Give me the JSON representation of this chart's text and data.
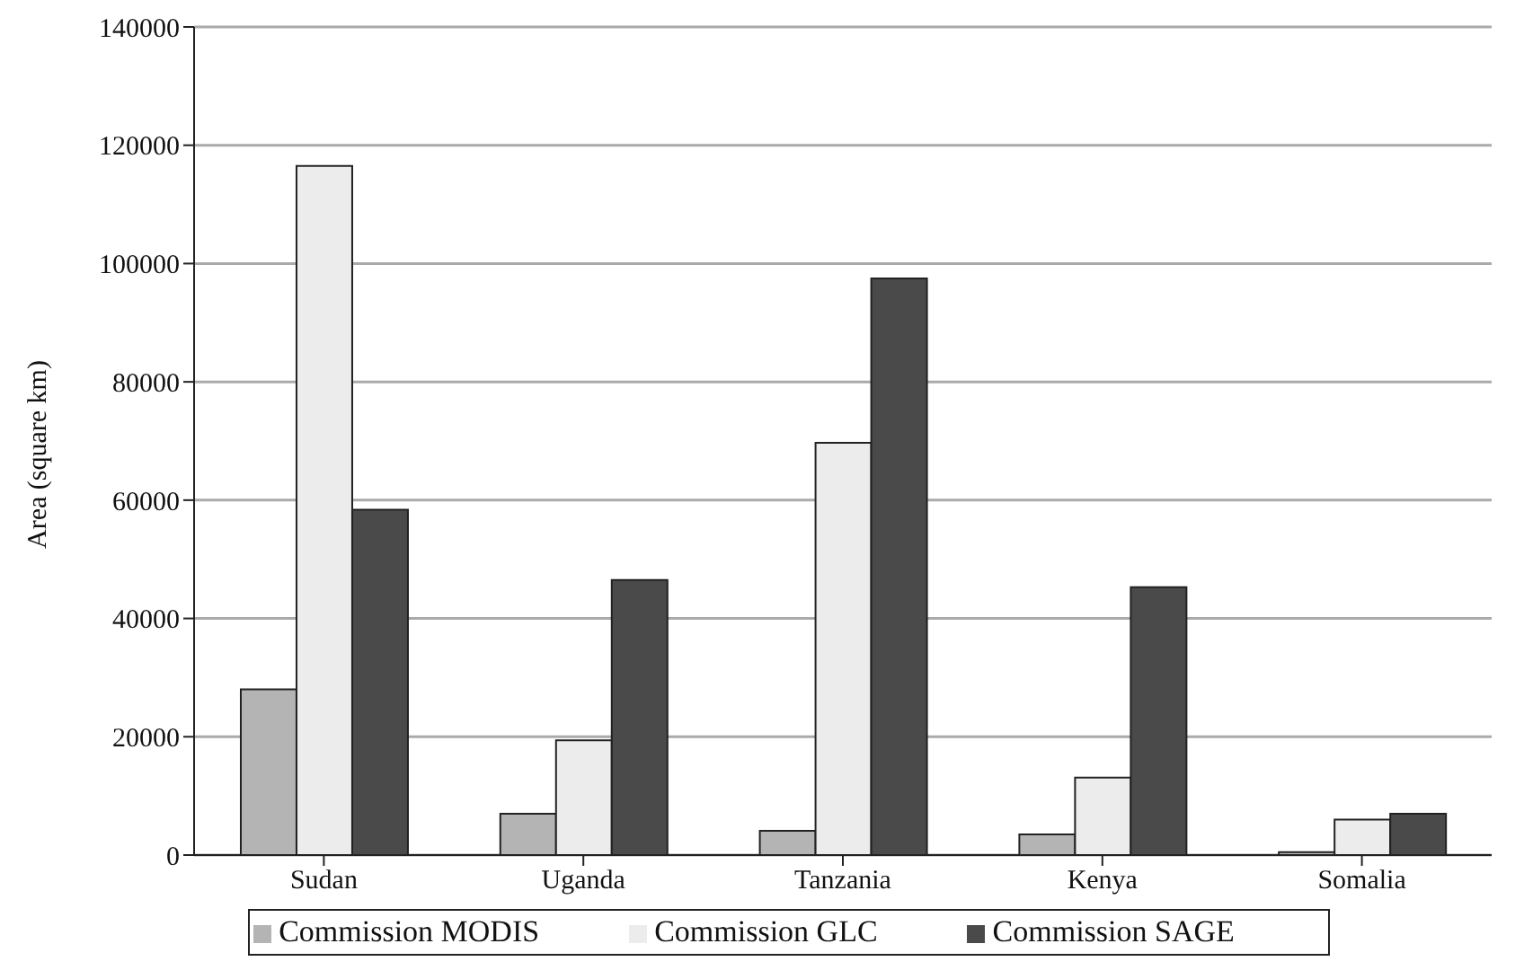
{
  "chart_data": {
    "type": "bar",
    "ylabel": "Area (square km)",
    "categories": [
      "Sudan",
      "Uganda",
      "Tanzania",
      "Kenya",
      "Somalia"
    ],
    "series": [
      {
        "name": "Commission MODIS",
        "color": "#b4b4b4",
        "values": [
          28000,
          7000,
          4100,
          3500,
          500
        ]
      },
      {
        "name": "Commission GLC",
        "color": "#ececec",
        "values": [
          116500,
          19400,
          69700,
          13100,
          6000
        ]
      },
      {
        "name": "Commission SAGE",
        "color": "#4a4a4a",
        "values": [
          58400,
          46500,
          97500,
          45300,
          7000
        ]
      }
    ],
    "ylim": [
      0,
      140000
    ],
    "yticks": [
      0,
      20000,
      40000,
      60000,
      80000,
      100000,
      120000,
      140000
    ],
    "grid": "y",
    "legend": "bottom"
  }
}
